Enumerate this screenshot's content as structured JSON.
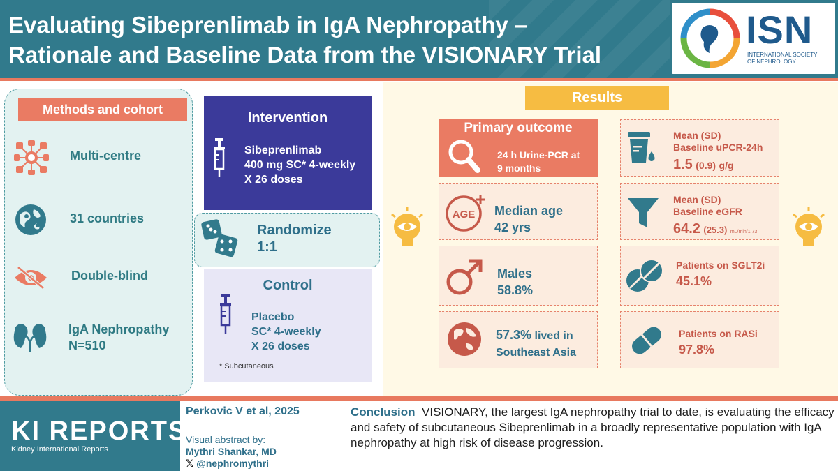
{
  "header": {
    "title_line1": "Evaluating Sibeprenlimab in IgA Nephropathy –",
    "title_line2": "Rationale and Baseline Data from the VISIONARY Trial",
    "logo_word": "ISN",
    "logo_sub_line1": "INTERNATIONAL SOCIETY",
    "logo_sub_line2": "OF NEPHROLOGY"
  },
  "methods": {
    "heading": "Methods and cohort",
    "items": [
      {
        "label": "Multi-centre",
        "icon": "network-icon"
      },
      {
        "label": "31 countries",
        "icon": "world-map-icon"
      },
      {
        "label": "Double-blind",
        "icon": "eye-slash-icon"
      },
      {
        "label_line1": "IgA Nephropathy",
        "label_line2": "N=510",
        "icon": "kidney-icon"
      }
    ]
  },
  "intervention": {
    "title": "Intervention",
    "line1": "Sibeprenlimab",
    "line2": "400 mg SC* 4-weekly",
    "line3": "X 26 doses"
  },
  "randomize": {
    "line1": "Randomize",
    "line2": "1:1"
  },
  "control": {
    "title": "Control",
    "line1": "Placebo",
    "line2": "SC* 4-weekly",
    "line3": "X 26 doses",
    "footnote": "* Subcutaneous"
  },
  "results": {
    "heading": "Results",
    "primary": {
      "title": "Primary outcome",
      "line1": "24 h Urine-PCR at",
      "line2": "9 months"
    },
    "age": {
      "label": "Median age",
      "value": "42 yrs",
      "icon_text": "AGE"
    },
    "males": {
      "label": "Males",
      "value": "58.8%"
    },
    "region": {
      "value": "57.3%",
      "text1": "lived in",
      "text2": "Southeast Asia"
    },
    "upcr": {
      "line1": "Mean (SD)",
      "line2": "Baseline uPCR-24h",
      "value": "1.5",
      "sd": "(0.9)",
      "unit": "g/g"
    },
    "egfr": {
      "line1": "Mean (SD)",
      "line2": "Baseline eGFR",
      "value": "64.2",
      "sd": "(25.3)",
      "unit": "mL/min/1.73"
    },
    "sglt2": {
      "label": "Patients on SGLT2i",
      "value": "45.1%"
    },
    "rasi": {
      "label": "Patients on RASi",
      "value": "97.8%"
    }
  },
  "footer": {
    "journal_title": "KI REPORTS",
    "journal_sub": "Kidney International Reports",
    "citation": "Perkovic V et al, 2025",
    "visual_abstract_label": "Visual abstract by:",
    "author": "Mythri Shankar, MD",
    "handle": "@nephromythri",
    "conclusion_label": "Conclusion",
    "conclusion_text": "VISIONARY, the largest IgA nephropathy trial to date, is evaluating the efficacy and safety of subcutaneous Sibeprenlimab in a broadly representative population with IgA nephropathy at high risk of disease progression."
  },
  "colors": {
    "teal": "#317a8c",
    "coral": "#ea7b63",
    "indigo": "#3b3a9a",
    "yellow": "#f6bc42"
  }
}
